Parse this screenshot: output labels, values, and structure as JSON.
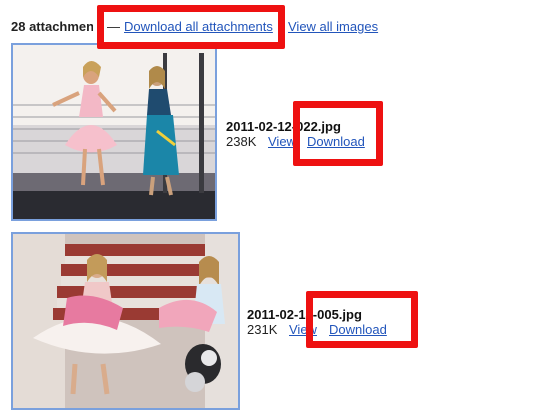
{
  "header": {
    "attachment_count": "28 attachments",
    "dash": "—",
    "download_all_label": "Download all attachments",
    "view_all_label": "View all images"
  },
  "attachments": [
    {
      "filename": "2011-02-12-022.jpg",
      "size": "238K",
      "view_label": "View",
      "download_label": "Download"
    },
    {
      "filename": "2011-02-13-005.jpg",
      "size": "231K",
      "view_label": "View",
      "download_label": "Download"
    }
  ],
  "colors": {
    "link": "#2255bb",
    "highlight": "#ee1111",
    "thumb_border": "#7aa0dd"
  }
}
